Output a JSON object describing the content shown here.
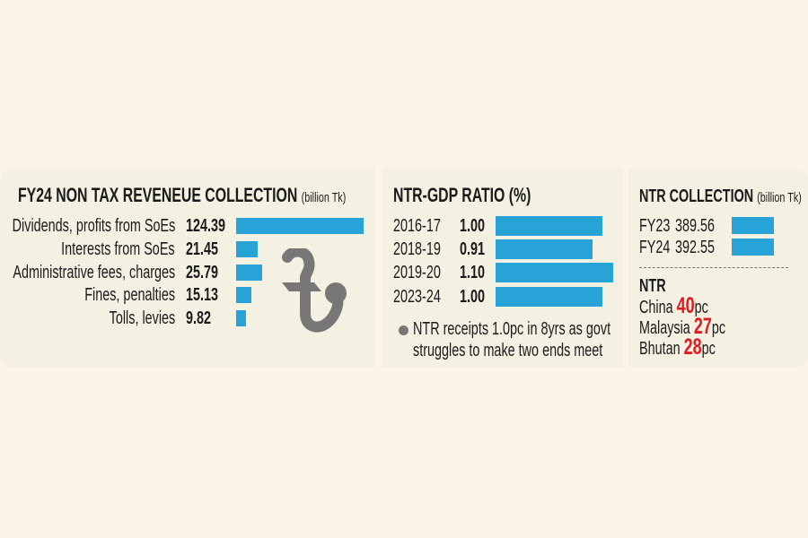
{
  "chart_data": [
    {
      "type": "bar",
      "title": "FY24 NON TAX REVENEUE COLLECTION",
      "unit": "(billion Tk)",
      "categories": [
        "Dividends, profits from SoEs",
        "Interests from SoEs",
        "Administrative fees, charges",
        "Fines, penalties",
        "Tolls, levies"
      ],
      "values": [
        124.39,
        21.45,
        25.79,
        15.13,
        9.82
      ],
      "value_labels": [
        "124.39",
        "21.45",
        "25.79",
        "15.13",
        "9.82"
      ],
      "orientation": "horizontal",
      "xlim": [
        0,
        124.39
      ]
    },
    {
      "type": "bar",
      "title": "NTR-GDP RATIO (%)",
      "categories": [
        "2016-17",
        "2018-19",
        "2019-20",
        "2023-24"
      ],
      "values": [
        1.0,
        0.91,
        1.1,
        1.0
      ],
      "value_labels": [
        "1.00",
        "0.91",
        "1.10",
        "1.00"
      ],
      "orientation": "horizontal",
      "xlim": [
        0,
        1.1
      ],
      "note": "NTR receipts 1.0pc in 8yrs as govt",
      "note_line2": "struggles to make two ends meet"
    },
    {
      "type": "bar",
      "title": "NTR COLLECTION",
      "unit": "(billion Tk)",
      "categories": [
        "FY23",
        "FY24"
      ],
      "values": [
        389.56,
        392.55
      ],
      "value_labels": [
        "389.56",
        "392.55"
      ],
      "orientation": "horizontal",
      "xlim": [
        0,
        392.55
      ]
    }
  ],
  "ntr_compare": {
    "heading": "NTR",
    "items": [
      {
        "country": "China",
        "value": "40",
        "suffix": "pc"
      },
      {
        "country": "Malaysia",
        "value": "27",
        "suffix": "pc"
      },
      {
        "country": "Bhutan",
        "value": "28",
        "suffix": "pc"
      }
    ]
  },
  "icons": {
    "currency": "taka-symbol-icon",
    "bullet": "bullet-dot-icon"
  },
  "colors": {
    "bar": "#27a3d8",
    "highlight": "#e01b22",
    "panel": "#f4f1e3",
    "background": "#fdf4e8",
    "symbol": "#777777"
  }
}
